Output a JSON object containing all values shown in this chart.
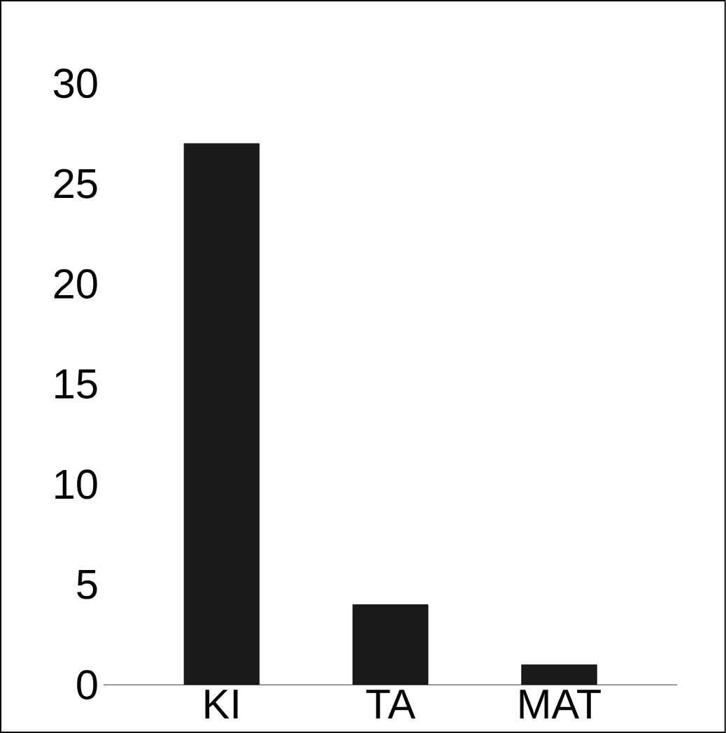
{
  "chart_data": {
    "type": "bar",
    "categories": [
      "KI",
      "TA",
      "MAT"
    ],
    "values": [
      27,
      4,
      1
    ],
    "color": "#1a1a1a",
    "ylim": [
      0,
      30
    ],
    "yticks": [
      0,
      5,
      10,
      15,
      20,
      25,
      30
    ]
  }
}
